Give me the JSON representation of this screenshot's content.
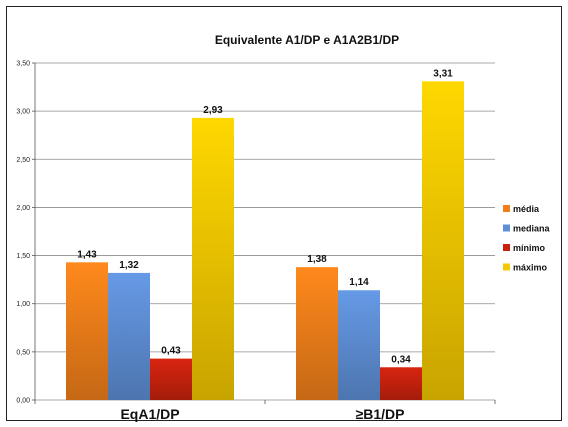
{
  "chart_data": {
    "type": "bar",
    "title": "Equivalente A1/DP e A1A2B1/DP",
    "categories": [
      "EqA1/DP",
      "≥B1/DP"
    ],
    "series": [
      {
        "name": "média",
        "values": [
          1.43,
          1.38
        ],
        "labels": [
          "1,43",
          "1,38"
        ],
        "color": "#f07f1a"
      },
      {
        "name": "mediana",
        "values": [
          1.32,
          1.14
        ],
        "labels": [
          "1,32",
          "1,14"
        ],
        "color": "#5e8fd5"
      },
      {
        "name": "mínimo",
        "values": [
          0.43,
          0.34
        ],
        "labels": [
          "0,43",
          "0,34"
        ],
        "color": "#c8220e"
      },
      {
        "name": "máximo",
        "values": [
          2.93,
          3.31
        ],
        "labels": [
          "2,93",
          "3,31"
        ],
        "color": "#f4c800"
      }
    ],
    "yticks": [
      {
        "value": 0,
        "label": "0,00"
      },
      {
        "value": 0.5,
        "label": "0,50"
      },
      {
        "value": 1.0,
        "label": "1,00"
      },
      {
        "value": 1.5,
        "label": "1,50"
      },
      {
        "value": 2.0,
        "label": "2,00"
      },
      {
        "value": 2.5,
        "label": "2,50"
      },
      {
        "value": 3.0,
        "label": "3,00"
      },
      {
        "value": 3.5,
        "label": "3,50"
      }
    ],
    "ylim": [
      0,
      3.5
    ],
    "xlabel": "",
    "ylabel": "",
    "grid": true,
    "legend_position": "right"
  }
}
